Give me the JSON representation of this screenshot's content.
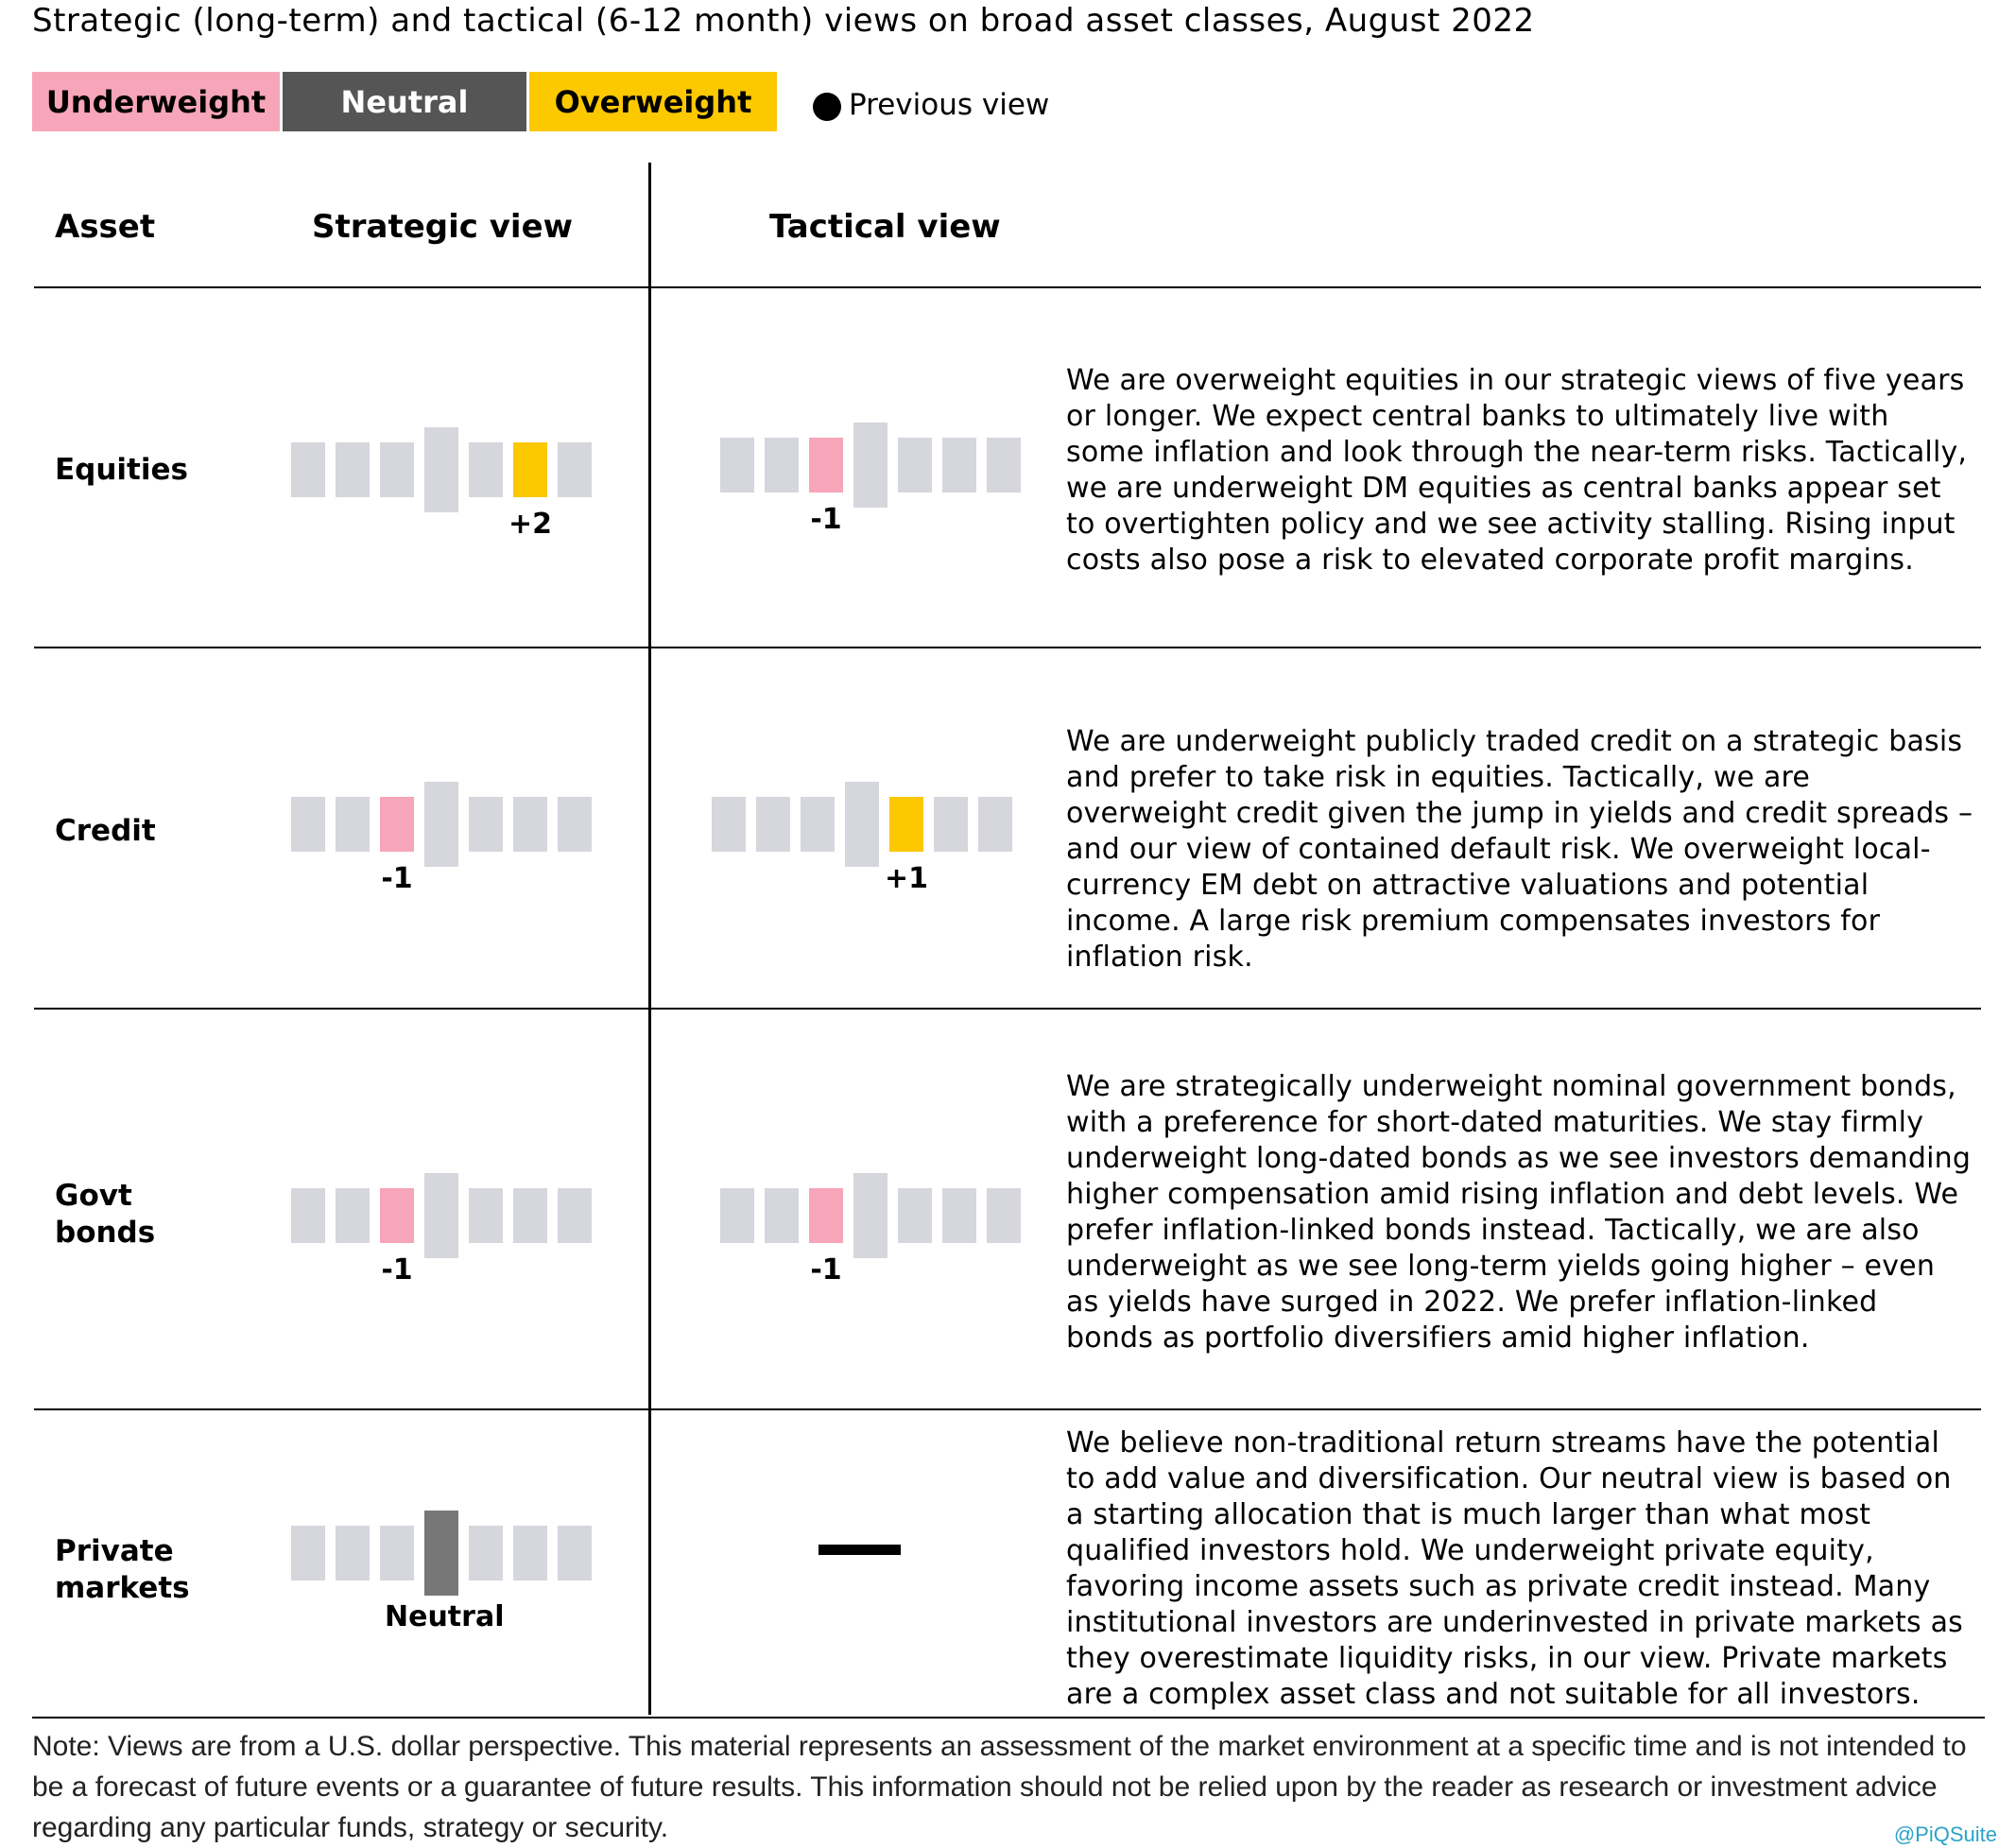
{
  "title": "Strategic (long-term) and tactical (6-12 month) views on broad asset classes, August 2022",
  "legend": {
    "underweight": "Underweight",
    "neutral": "Neutral",
    "overweight": "Overweight",
    "previous_view": "Previous view"
  },
  "headers": {
    "asset": "Asset",
    "strategic": "Strategic view",
    "tactical": "Tactical view"
  },
  "colors": {
    "underweight": "#f7a5b8",
    "neutral": "#777777",
    "overweight": "#fcc800",
    "inactive": "#d6d6dd"
  },
  "chart_data": {
    "type": "table",
    "scale": {
      "min": -3,
      "max": 3,
      "positions": [
        -3,
        -2,
        -1,
        0,
        1,
        2,
        3
      ]
    },
    "rows": [
      {
        "asset": "Equities",
        "strategic": {
          "value": 2,
          "label": "+2"
        },
        "tactical": {
          "value": -1,
          "label": "-1"
        },
        "description": "We are overweight equities in our strategic views of five years or longer. We expect central banks to ultimately live with some inflation and look through the near-term risks. Tactically, we are underweight DM equities as central banks appear set to overtighten policy and we see activity stalling. Rising input costs also pose a risk to elevated corporate profit margins."
      },
      {
        "asset": "Credit",
        "strategic": {
          "value": -1,
          "label": "-1"
        },
        "tactical": {
          "value": 1,
          "label": "+1"
        },
        "description": "We are underweight publicly traded credit on a strategic basis and prefer to take risk in equities. Tactically, we are overweight credit given the jump in yields and credit spreads – and our view of contained default risk. We overweight local-currency EM debt on attractive valuations and potential income. A large risk premium compensates investors for inflation risk."
      },
      {
        "asset": "Govt bonds",
        "strategic": {
          "value": -1,
          "label": "-1"
        },
        "tactical": {
          "value": -1,
          "label": "-1"
        },
        "description": "We are strategically underweight nominal government bonds, with a preference for short-dated maturities. We stay firmly underweight long-dated bonds as we see investors demanding higher compensation amid rising inflation and debt levels. We prefer inflation-linked bonds instead. Tactically, we are also underweight as we see long-term yields going higher – even as yields have surged in 2022. We prefer inflation-linked bonds as portfolio diversifiers amid higher inflation."
      },
      {
        "asset": "Private markets",
        "strategic": {
          "value": 0,
          "label": "Neutral"
        },
        "tactical": null,
        "description": "We believe non-traditional return streams have the potential to add value and diversification. Our neutral view is based on a starting allocation that is much larger than what most qualified investors hold. We underweight private equity, favoring income assets such as private credit instead. Many institutional investors are underinvested in private markets as they overestimate liquidity risks, in our view. Private markets are a complex asset class and not suitable for all investors."
      }
    ]
  },
  "note": "Note: Views are from a U.S. dollar perspective. This material represents an assessment of the market environment at a specific time and is not intended to be a forecast of future events or a guarantee of future results. This information should not be relied upon by the reader as research or investment advice regarding any particular funds, strategy or security.",
  "credit": "@PiQSuite"
}
